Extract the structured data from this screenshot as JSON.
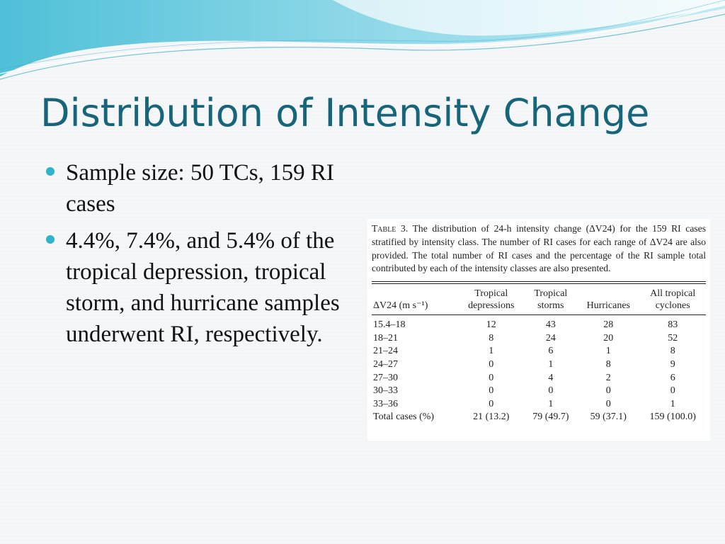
{
  "slide": {
    "title": "Distribution of Intensity Change",
    "bullets": [
      "Sample size: 50 TCs, 159 RI cases",
      "4.4%, 7.4%, and 5.4% of the tropical depression, tropical storm, and hurricane samples underwent RI, respectively."
    ],
    "colors": {
      "title": "#17657a",
      "bullet": "#2fb4c9",
      "wave": "#5cc8e0"
    }
  },
  "table": {
    "caption_label": "Table 3.",
    "caption_text": "The distribution of 24-h intensity change (ΔV24) for the 159 RI cases stratified by intensity class. The number of RI cases for each range of ΔV24 are also provided. The total number of RI cases and the percentage of the RI sample total contributed by each of the intensity classes are also presented.",
    "headers": {
      "range": "ΔV24 (m s⁻¹)",
      "td_line1": "Tropical",
      "td_line2": "depressions",
      "ts_line1": "Tropical",
      "ts_line2": "storms",
      "hu": "Hurricanes",
      "all_line1": "All tropical",
      "all_line2": "cyclones"
    },
    "rows": [
      {
        "range": "15.4–18",
        "td": "12",
        "ts": "43",
        "hu": "28",
        "all": "83"
      },
      {
        "range": "18–21",
        "td": "8",
        "ts": "24",
        "hu": "20",
        "all": "52"
      },
      {
        "range": "21–24",
        "td": "1",
        "ts": "6",
        "hu": "1",
        "all": "8"
      },
      {
        "range": "24–27",
        "td": "0",
        "ts": "1",
        "hu": "8",
        "all": "9"
      },
      {
        "range": "27–30",
        "td": "0",
        "ts": "4",
        "hu": "2",
        "all": "6"
      },
      {
        "range": "30–33",
        "td": "0",
        "ts": "0",
        "hu": "0",
        "all": "0"
      },
      {
        "range": "33–36",
        "td": "0",
        "ts": "1",
        "hu": "0",
        "all": "1"
      },
      {
        "range": "Total cases (%)",
        "td": "21 (13.2)",
        "ts": "79 (49.7)",
        "hu": "59 (37.1)",
        "all": "159 (100.0)"
      }
    ]
  }
}
